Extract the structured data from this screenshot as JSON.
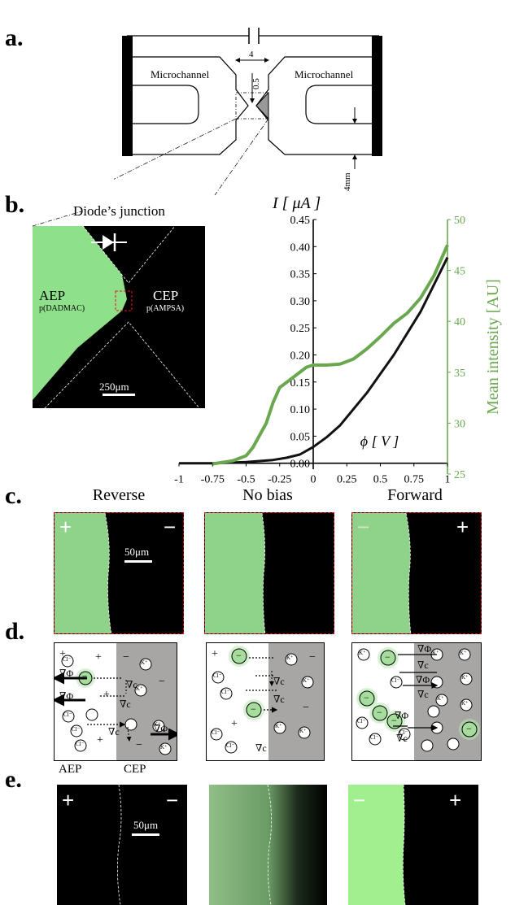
{
  "panels": {
    "a": "a.",
    "b": "b.",
    "c": "c.",
    "d": "d.",
    "e": "e."
  },
  "schematic": {
    "left_channel": "Microchannel",
    "right_channel": "Microchannel",
    "dim_width": "4",
    "dim_gap": "0.5",
    "dim_height": "4mm"
  },
  "micrograph_b": {
    "title": "Diode’s junction",
    "left_label": "AEP",
    "left_sub": "p(DADMAC)",
    "right_label": "CEP",
    "right_sub": "p(AMPSA)",
    "scale": "250μm"
  },
  "chart_data": {
    "type": "line",
    "xlabel": "ϕ [ V ]",
    "ylabel": "I [ μA ]",
    "y2label": "Mean intensity [AU]",
    "xlim": [
      -1,
      1
    ],
    "ylim": [
      -0.02,
      0.45
    ],
    "y2lim": [
      25,
      50
    ],
    "xticks": [
      "-1",
      "-0.75",
      "-0.5",
      "-0.25",
      "0",
      "0.25",
      "0.5",
      "0.75",
      "1"
    ],
    "yticks": [
      "0.00",
      "0.05",
      "0.10",
      "0.15",
      "0.20",
      "0.25",
      "0.30",
      "0.35",
      "0.40",
      "0.45"
    ],
    "y2ticks": [
      "25",
      "30",
      "35",
      "40",
      "45",
      "50"
    ],
    "colors": {
      "current": "#111111",
      "intensity": "#6aa84f"
    },
    "series": [
      {
        "axis": "left",
        "color": "#111111",
        "x": [
          -1,
          -0.75,
          -0.5,
          -0.3,
          -0.2,
          -0.1,
          0,
          0.1,
          0.2,
          0.3,
          0.4,
          0.5,
          0.6,
          0.7,
          0.8,
          0.9,
          1
        ],
        "y": [
          0,
          0,
          0.002,
          0.006,
          0.01,
          0.016,
          0.03,
          0.048,
          0.07,
          0.1,
          0.13,
          0.165,
          0.2,
          0.24,
          0.28,
          0.33,
          0.38
        ]
      },
      {
        "axis": "right",
        "color": "#6aa84f",
        "x": [
          -0.75,
          -0.6,
          -0.5,
          -0.45,
          -0.35,
          -0.3,
          -0.25,
          -0.15,
          -0.05,
          0,
          0.1,
          0.2,
          0.3,
          0.4,
          0.5,
          0.6,
          0.7,
          0.8,
          0.9,
          1
        ],
        "y": [
          26,
          26.3,
          26.8,
          27.6,
          30,
          32,
          33.5,
          34.5,
          35.5,
          35.7,
          35.7,
          35.8,
          36.3,
          37.3,
          38.5,
          39.8,
          40.8,
          42.3,
          44.5,
          47.5
        ]
      }
    ]
  },
  "row_c": {
    "headings": [
      "Reverse",
      "No bias",
      "Forward"
    ],
    "scale": "50μm"
  },
  "row_d": {
    "left_label": "AEP",
    "right_label": "CEP",
    "grad_c": "∇c",
    "grad_phi": "∇Φ",
    "cl": "Cl⁻",
    "k": "K⁺",
    "minus": "−"
  },
  "row_e": {
    "scale": "50μm"
  },
  "signs": {
    "plus": "+",
    "minus": "−"
  },
  "colors": {
    "green": "#8fe08a",
    "gel": "#a8e3a0",
    "gray": "#a8a6a4",
    "dash_red": "#d11"
  }
}
